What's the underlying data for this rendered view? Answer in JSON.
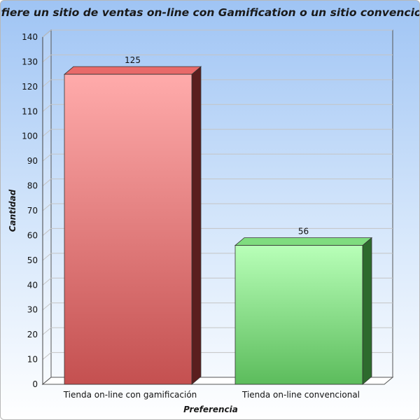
{
  "chart_data": {
    "type": "bar",
    "title": "¿Prefiere un sitio de ventas on-line con Gamification o un sitio convencional?",
    "xlabel": "Preferencia",
    "ylabel": "Cantidad",
    "categories": [
      "Tienda on-line con gamificación",
      "Tienda on-line convencional"
    ],
    "values": [
      125,
      56
    ],
    "data_labels": [
      "125",
      "56"
    ],
    "ylim": [
      0,
      140
    ],
    "yticks": [
      0,
      10,
      20,
      30,
      40,
      50,
      60,
      70,
      80,
      90,
      100,
      110,
      120,
      130,
      140
    ],
    "grid": true,
    "legend": "none",
    "colors": {
      "bar_1_top": "#ffabab",
      "bar_1_bottom": "#c45050",
      "bar_2_top": "#b8ffb8",
      "bar_2_bottom": "#5cbc5c",
      "background_top": "#9fc4f4",
      "background_bottom": "#ffffff"
    }
  }
}
